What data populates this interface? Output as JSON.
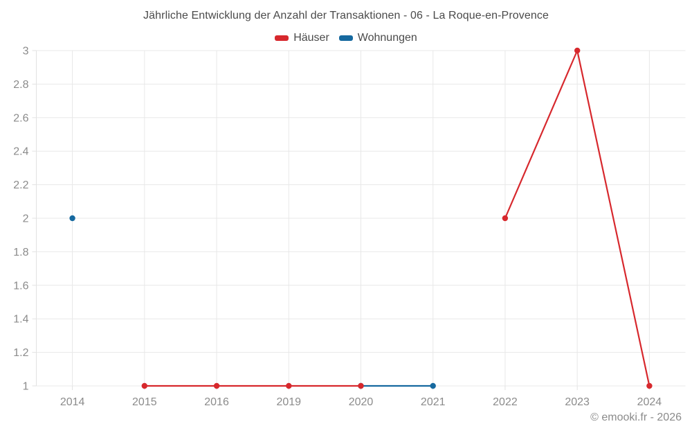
{
  "title": "Jährliche Entwicklung der Anzahl der Transaktionen - 06 - La Roque-en-Provence",
  "legend": {
    "items": [
      {
        "label": "Häuser",
        "color": "#d7282d"
      },
      {
        "label": "Wohnungen",
        "color": "#16699f"
      }
    ]
  },
  "footer": {
    "copyright": "© emooki.fr - 2026"
  },
  "colors": {
    "grid": "#e8e8e8",
    "axis": "#e2e2e2",
    "axis_label": "#8b8b8b",
    "title_text": "#4a4a4a"
  },
  "chart_data": {
    "type": "line",
    "title": "Jährliche Entwicklung der Anzahl der Transaktionen - 06 - La Roque-en-Provence",
    "categories": [
      "2014",
      "2015",
      "2016",
      "2019",
      "2020",
      "2021",
      "2022",
      "2023",
      "2024"
    ],
    "series": [
      {
        "name": "Häuser",
        "color": "#d7282d",
        "values": [
          null,
          1,
          1,
          1,
          1,
          null,
          2,
          3,
          1
        ]
      },
      {
        "name": "Wohnungen",
        "color": "#16699f",
        "values": [
          2,
          null,
          null,
          null,
          1,
          1,
          null,
          null,
          null
        ]
      }
    ],
    "xlabel": "",
    "ylabel": "",
    "ylim": [
      1,
      3
    ],
    "yticks": [
      1,
      1.2,
      1.4,
      1.6,
      1.8,
      2,
      2.2,
      2.4,
      2.6,
      2.8,
      3
    ],
    "grid": true,
    "legend_position": "top"
  }
}
